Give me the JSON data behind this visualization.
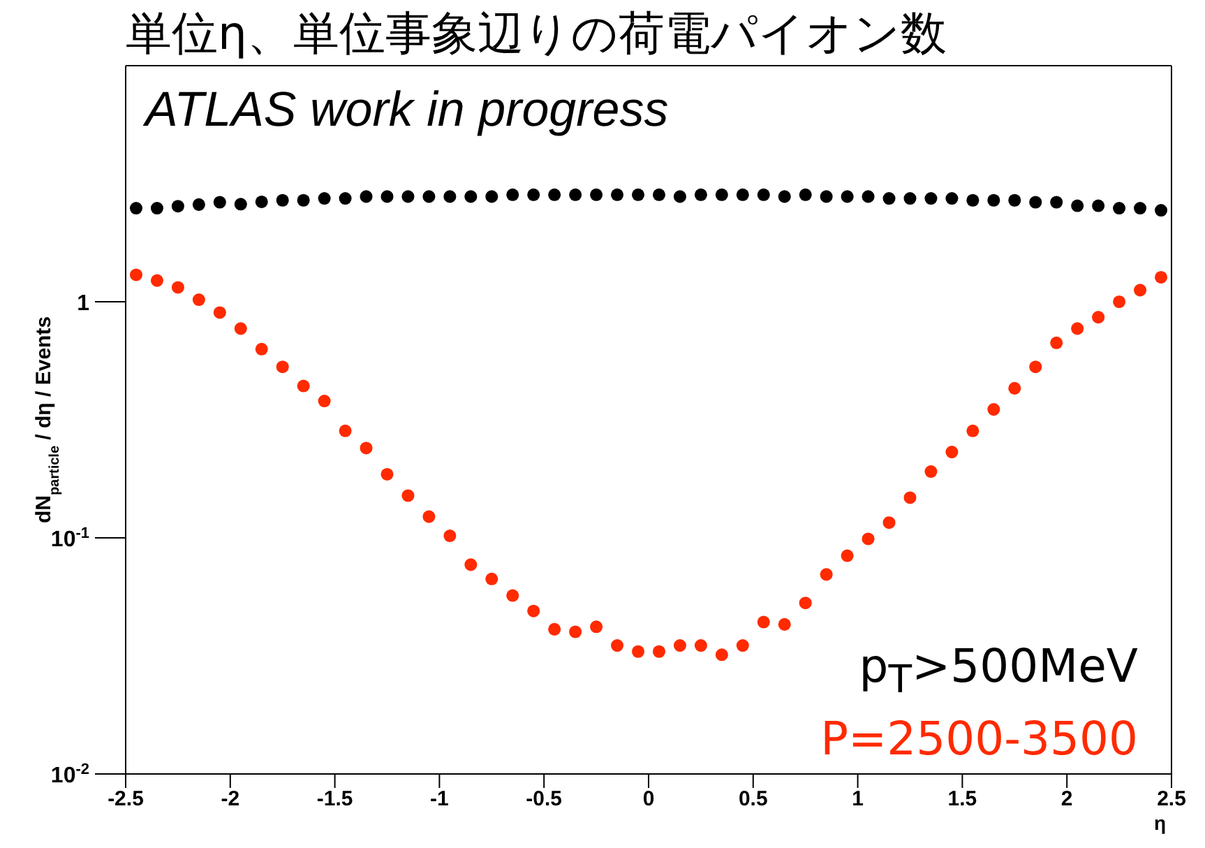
{
  "chart_data": {
    "type": "scatter",
    "title": "単位η、単位事象辺りの荷電パイオン数",
    "xlabel": "η",
    "ylabel": "dN$_{particle}$ / dη / Events",
    "annotations": [
      "ATLAS work in progress"
    ],
    "x": [
      -2.45,
      -2.35,
      -2.25,
      -2.15,
      -2.05,
      -1.95,
      -1.85,
      -1.75,
      -1.65,
      -1.55,
      -1.45,
      -1.35,
      -1.25,
      -1.15,
      -1.05,
      -0.95,
      -0.85,
      -0.75,
      -0.65,
      -0.55,
      -0.45,
      -0.35,
      -0.25,
      -0.15,
      -0.05,
      0.05,
      0.15,
      0.25,
      0.35,
      0.45,
      0.55,
      0.65,
      0.75,
      0.85,
      0.95,
      1.05,
      1.15,
      1.25,
      1.35,
      1.45,
      1.55,
      1.65,
      1.75,
      1.85,
      1.95,
      2.05,
      2.15,
      2.25,
      2.35,
      2.45
    ],
    "series": [
      {
        "name": "p$_{T}$>500MeV",
        "color": "#000000",
        "values": [
          2.49,
          2.49,
          2.54,
          2.58,
          2.64,
          2.59,
          2.65,
          2.69,
          2.69,
          2.74,
          2.74,
          2.79,
          2.79,
          2.79,
          2.79,
          2.79,
          2.79,
          2.79,
          2.84,
          2.84,
          2.84,
          2.84,
          2.84,
          2.84,
          2.84,
          2.84,
          2.79,
          2.84,
          2.84,
          2.84,
          2.84,
          2.79,
          2.84,
          2.79,
          2.79,
          2.79,
          2.74,
          2.74,
          2.74,
          2.74,
          2.69,
          2.69,
          2.69,
          2.64,
          2.64,
          2.55,
          2.55,
          2.49,
          2.49,
          2.44
        ]
      },
      {
        "name": "P=2500-3500",
        "color": "#ff2a00",
        "values": [
          1.3,
          1.23,
          1.15,
          1.02,
          0.9,
          0.77,
          0.63,
          0.53,
          0.44,
          0.38,
          0.284,
          0.24,
          0.186,
          0.151,
          0.123,
          0.102,
          0.077,
          0.067,
          0.057,
          0.049,
          0.041,
          0.04,
          0.042,
          0.035,
          0.033,
          0.033,
          0.035,
          0.035,
          0.032,
          0.035,
          0.044,
          0.043,
          0.053,
          0.07,
          0.084,
          0.099,
          0.116,
          0.148,
          0.191,
          0.231,
          0.284,
          0.35,
          0.43,
          0.53,
          0.67,
          0.77,
          0.86,
          1.0,
          1.12,
          1.27
        ]
      }
    ],
    "xlim": [
      -2.5,
      2.5
    ],
    "xticks": [
      -2.5,
      -2,
      -1.5,
      -1,
      -0.5,
      0,
      0.5,
      1,
      1.5,
      2,
      2.5
    ],
    "ylim": [
      0.01,
      10
    ],
    "yticks": [
      {
        "value": 0.01,
        "label": "10$^{-2}$"
      },
      {
        "value": 0.1,
        "label": "10$^{-1}$"
      },
      1
    ],
    "log": true,
    "legend": "bottom right",
    "marker": "circle"
  }
}
